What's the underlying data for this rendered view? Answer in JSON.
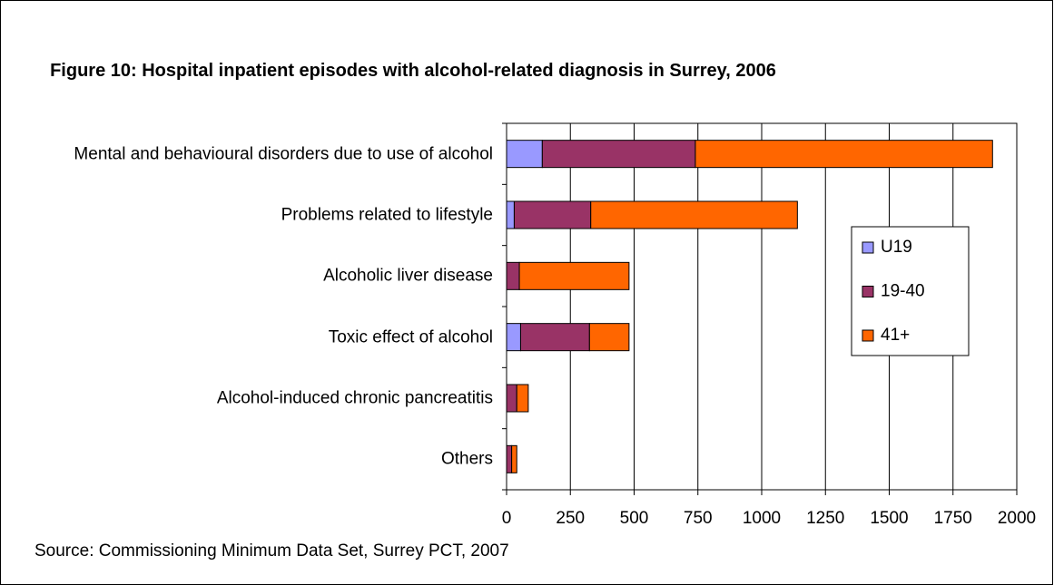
{
  "chart_data": {
    "type": "bar",
    "orientation": "horizontal",
    "stacked": true,
    "title": "Figure 10: Hospital inpatient episodes with alcohol-related diagnosis in Surrey, 2006",
    "source": "Source: Commissioning Minimum Data Set, Surrey PCT, 2007",
    "categories": [
      "Mental and behavioural disorders due to use of alcohol",
      "Problems related to lifestyle",
      "Alcoholic liver disease",
      "Toxic effect of alcohol",
      "Alcohol-induced chronic pancreatitis",
      "Others"
    ],
    "series": [
      {
        "name": "U19",
        "color": "#9999ff",
        "values": [
          140,
          30,
          0,
          55,
          0,
          0
        ]
      },
      {
        "name": "19-40",
        "color": "#993366",
        "values": [
          600,
          300,
          50,
          270,
          40,
          20
        ]
      },
      {
        "name": "41+",
        "color": "#ff6600",
        "values": [
          1165,
          810,
          430,
          155,
          45,
          20
        ]
      }
    ],
    "xlim": [
      0,
      2000
    ],
    "xticks": [
      0,
      250,
      500,
      750,
      1000,
      1250,
      1500,
      1750,
      2000
    ],
    "grid": true,
    "legend": "right"
  }
}
